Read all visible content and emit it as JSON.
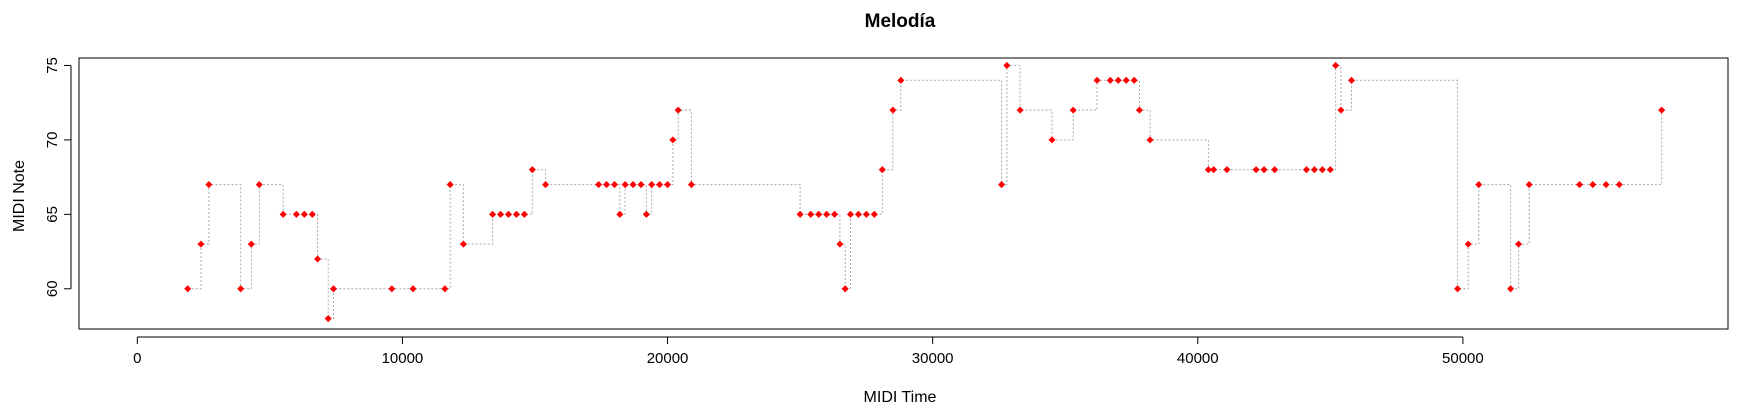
{
  "chart_data": {
    "type": "line",
    "title": "Melodía",
    "xlabel": "MIDI Time",
    "ylabel": "MIDI Note",
    "xlim": [
      -2200,
      60000
    ],
    "ylim": [
      57.3,
      75.5
    ],
    "xticks": [
      0,
      10000,
      20000,
      30000,
      40000,
      50000
    ],
    "yticks": [
      60,
      65,
      70,
      75
    ],
    "grid": false,
    "legend": "none",
    "line_style": "step-dotted",
    "colors": {
      "points": "#ff0000",
      "line": "#a9a9a9"
    },
    "series": [
      {
        "x": [
          1900,
          2400,
          2700,
          3900,
          4300,
          4600,
          5500,
          6000,
          6300,
          6600,
          6800,
          7200,
          7400,
          9600,
          10400,
          11600,
          11800,
          12300,
          13400,
          13700,
          14000,
          14300,
          14600,
          14900,
          15400,
          17400,
          17700,
          18000,
          18200,
          18400,
          18700,
          19000,
          19200,
          19400,
          19700,
          20000,
          20200,
          20400,
          20900,
          25000,
          25400,
          25700,
          26000,
          26300,
          26500,
          26700,
          26900,
          27200,
          27500,
          27800,
          28100,
          28500,
          28800,
          32600,
          32800,
          33300,
          34500,
          35300,
          36200,
          36700,
          37000,
          37300,
          37600,
          37800,
          38200,
          40400,
          40600,
          41100,
          42200,
          42500,
          42900,
          44100,
          44400,
          44700,
          45000,
          45200,
          45400,
          45800,
          49800,
          50200,
          50600,
          51800,
          52100,
          52500,
          54400,
          54900,
          55400,
          55900,
          57500
        ],
        "y": [
          60,
          63,
          67,
          60,
          63,
          67,
          65,
          65,
          65,
          65,
          62,
          58,
          60,
          60,
          60,
          60,
          67,
          63,
          65,
          65,
          65,
          65,
          65,
          68,
          67,
          67,
          67,
          67,
          65,
          67,
          67,
          67,
          65,
          67,
          67,
          67,
          70,
          72,
          67,
          65,
          65,
          65,
          65,
          65,
          63,
          60,
          65,
          65,
          65,
          65,
          68,
          72,
          74,
          67,
          75,
          72,
          70,
          72,
          74,
          74,
          74,
          74,
          74,
          72,
          70,
          68,
          68,
          68,
          68,
          68,
          68,
          68,
          68,
          68,
          68,
          75,
          72,
          74,
          60,
          63,
          67,
          60,
          63,
          67,
          67,
          67,
          67,
          67,
          72
        ]
      }
    ]
  }
}
